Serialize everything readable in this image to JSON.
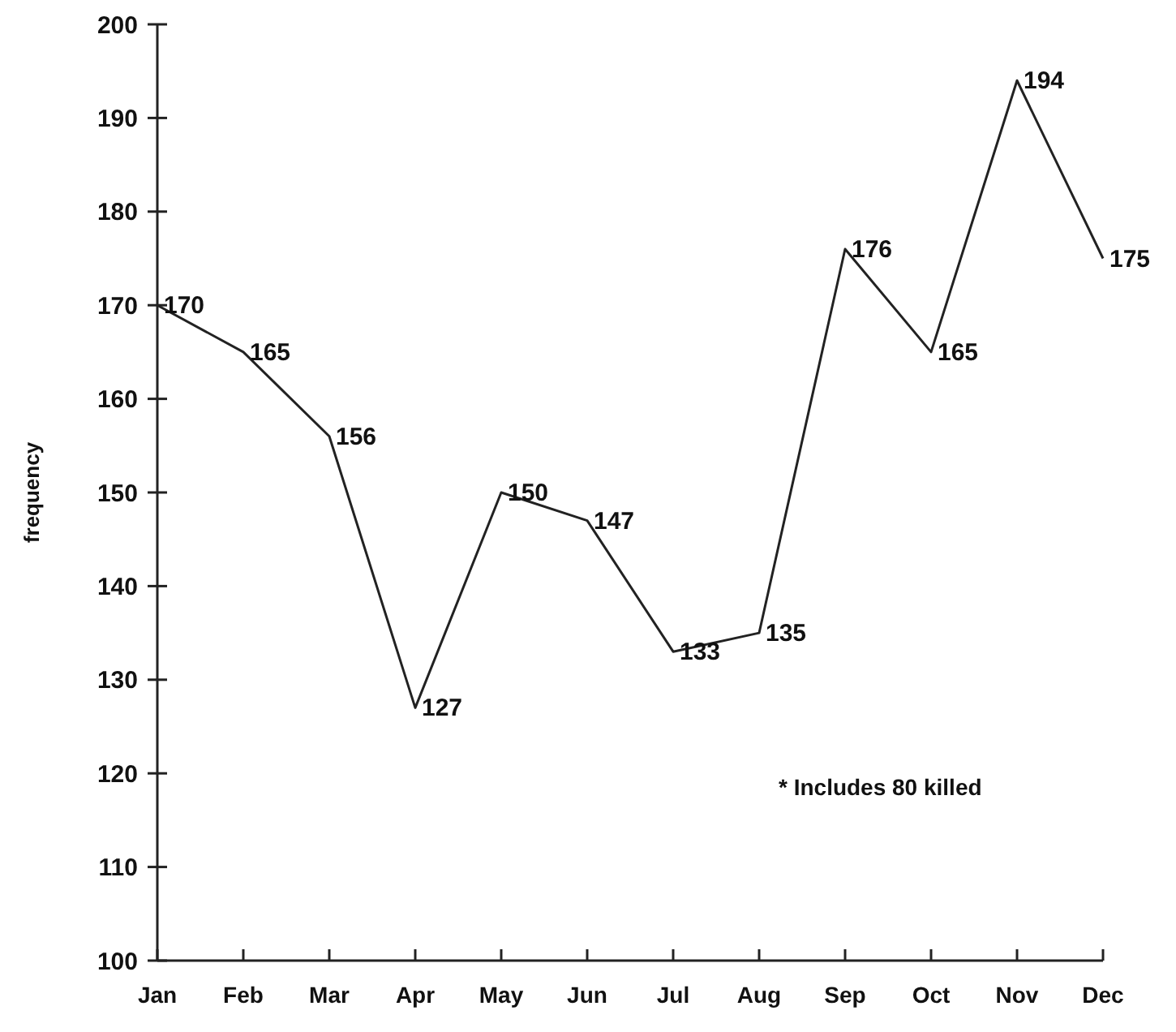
{
  "chart_data": {
    "type": "line",
    "ylabel": "frequency",
    "categories": [
      "Jan",
      "Feb",
      "Mar",
      "Apr",
      "May",
      "Jun",
      "Jul",
      "Aug",
      "Sep",
      "Oct",
      "Nov",
      "Dec"
    ],
    "series": [
      {
        "color": "#222222",
        "values": [
          170,
          165,
          156,
          127,
          150,
          147,
          133,
          135,
          176,
          165,
          194,
          175
        ]
      }
    ],
    "ylim": [
      100,
      200
    ],
    "yticks": [
      100,
      110,
      120,
      130,
      140,
      150,
      160,
      170,
      180,
      190,
      200
    ],
    "data_labels": true,
    "grid": false,
    "marker": "none",
    "line_style": "solid",
    "annotations": [
      "* Includes 80 killed"
    ]
  }
}
